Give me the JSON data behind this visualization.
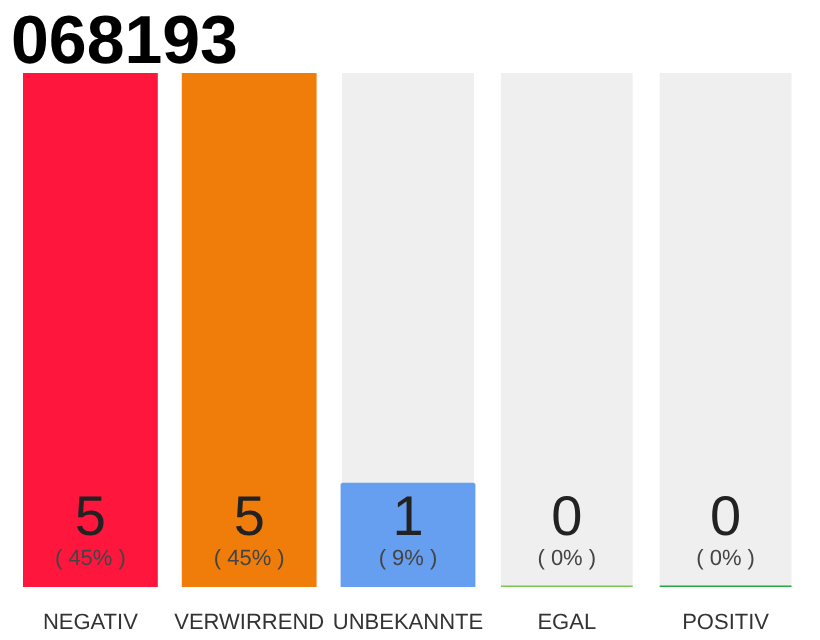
{
  "chart_data": {
    "type": "bar",
    "title": "068193",
    "data_labels": true,
    "categories": [
      "NEGATIV",
      "VERWIRREND",
      "UNBEKANNTE",
      "EGAL",
      "POSITIV"
    ],
    "values": [
      5,
      5,
      1,
      0,
      0
    ],
    "colors": [
      "#ff163c",
      "#f07d0a",
      "#669ef0",
      "#7dc855",
      "#22a845"
    ],
    "annotations": [
      "( 45% )",
      "( 45% )",
      "( 9% )",
      "( 0% )",
      "( 0% )"
    ]
  }
}
